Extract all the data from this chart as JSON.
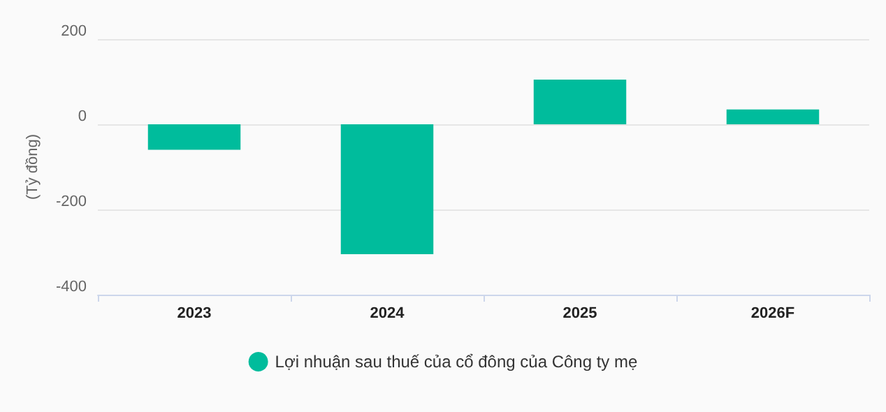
{
  "chart_data": {
    "type": "bar",
    "ylabel": "(Tỷ đồng)",
    "categories": [
      "2023",
      "2024",
      "2025",
      "2026F"
    ],
    "series": [
      {
        "name": "Lợi nhuận sau thuế của cổ đông của Công ty mẹ",
        "color": "#00bc9c",
        "values": [
          -60,
          -305,
          105,
          35
        ]
      }
    ],
    "ylim": [
      -400,
      200
    ],
    "yticks": [
      -400,
      -200,
      0,
      200
    ],
    "grid": "y",
    "legend": "bottom"
  }
}
